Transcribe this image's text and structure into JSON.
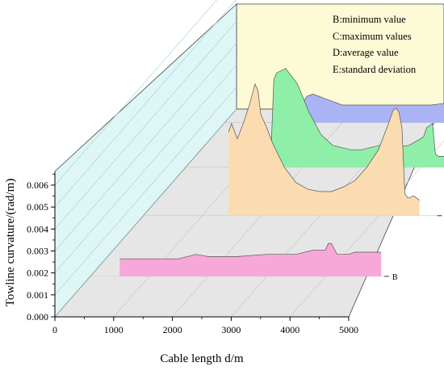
{
  "chart_data": {
    "type": "area",
    "xlabel": "Cable length d/m",
    "ylabel": "Towline curvature/(rad/m)",
    "xlim": [
      0,
      5000
    ],
    "ylim": [
      0,
      0.0065
    ],
    "xticks": [
      "0",
      "1000",
      "2000",
      "3000",
      "4000",
      "5000"
    ],
    "yticks": [
      "0.000",
      "0.001",
      "0.002",
      "0.003",
      "0.004",
      "0.005",
      "0.006"
    ],
    "legend": {
      "placement": "top-right",
      "entries": [
        "B:minimum value",
        "C:maximum values",
        "D:average value",
        "E:standard deviation"
      ]
    },
    "series": [
      {
        "name": "B",
        "color": "#f7a8d8",
        "x": [
          500,
          1000,
          1500,
          1800,
          2000,
          2500,
          3000,
          3500,
          3800,
          4000,
          4050,
          4100,
          4200,
          4300,
          4400,
          4500,
          4650,
          4950
        ],
        "y": [
          0.0008,
          0.0008,
          0.0008,
          0.001,
          0.0009,
          0.0009,
          0.001,
          0.001,
          0.0012,
          0.0012,
          0.0015,
          0.0015,
          0.001,
          0.001,
          0.001,
          0.0011,
          0.0011,
          0.0011
        ]
      },
      {
        "name": "C",
        "color": "#fbdcb0",
        "x": [
          1450,
          1500,
          1600,
          1700,
          1800,
          1900,
          1950,
          2000,
          2100,
          2200,
          2400,
          2600,
          2800,
          3000,
          3200,
          3400,
          3600,
          3800,
          4000,
          4100,
          4200,
          4250,
          4300,
          4350,
          4400,
          4450,
          4500,
          4600,
          4700
        ],
        "y": [
          0.0038,
          0.0042,
          0.0035,
          0.0042,
          0.005,
          0.006,
          0.0057,
          0.0046,
          0.004,
          0.0033,
          0.0022,
          0.0015,
          0.0012,
          0.0011,
          0.0011,
          0.0013,
          0.0016,
          0.0022,
          0.003,
          0.0037,
          0.0044,
          0.0048,
          0.0049,
          0.0047,
          0.004,
          0.001,
          0.0008,
          0.0009,
          0.0007
        ]
      },
      {
        "name": "D",
        "color": "#8fefa8",
        "x": [
          1450,
          1500,
          1550,
          1700,
          1900,
          2100,
          2300,
          2500,
          2800,
          3000,
          3300,
          3500,
          3800,
          4000,
          4050,
          4100,
          4200,
          4250,
          4300,
          4400
        ],
        "y": [
          0.0006,
          0.004,
          0.0043,
          0.0045,
          0.0038,
          0.0025,
          0.0015,
          0.001,
          0.0008,
          0.0008,
          0.001,
          0.0009,
          0.001,
          0.0013,
          0.0014,
          0.0018,
          0.002,
          0.0006,
          0.0005,
          0.0005
        ]
      },
      {
        "name": "E",
        "color": "#aab4f5",
        "x": [
          1300,
          1400,
          1500,
          1700,
          2000,
          2500,
          3000,
          3500,
          3800,
          4000,
          4100,
          4150,
          4200,
          4300,
          4400,
          4500
        ],
        "y": [
          0.0008,
          0.0012,
          0.0013,
          0.0011,
          0.0008,
          0.0008,
          0.0008,
          0.0008,
          0.0009,
          0.0011,
          0.0013,
          0.0013,
          0.001,
          0.001,
          0.0008,
          0.0007
        ]
      }
    ]
  }
}
